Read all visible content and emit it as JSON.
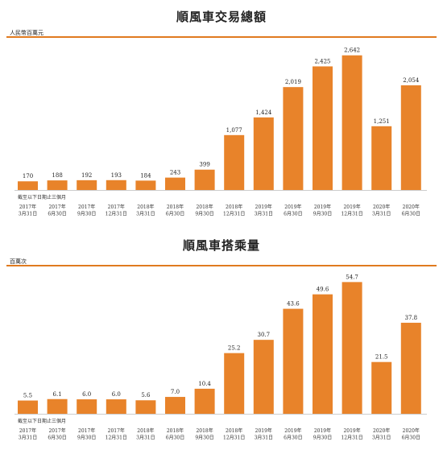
{
  "chart_data": [
    {
      "type": "bar",
      "title": "順風車交易總額",
      "unit_label": "人民幣百萬元",
      "period_note": "截至以下日期止三個月",
      "categories": [
        [
          "2017年",
          "3月31日"
        ],
        [
          "2017年",
          "6月30日"
        ],
        [
          "2017年",
          "9月30日"
        ],
        [
          "2017年",
          "12月31日"
        ],
        [
          "2018年",
          "3月31日"
        ],
        [
          "2018年",
          "6月30日"
        ],
        [
          "2018年",
          "9月30日"
        ],
        [
          "2018年",
          "12月31日"
        ],
        [
          "2019年",
          "3月31日"
        ],
        [
          "2019年",
          "6月30日"
        ],
        [
          "2019年",
          "9月30日"
        ],
        [
          "2019年",
          "12月31日"
        ],
        [
          "2020年",
          "3月31日"
        ],
        [
          "2020年",
          "6月30日"
        ]
      ],
      "values": [
        170,
        188,
        192,
        193,
        184,
        243,
        399,
        1077,
        1424,
        2019,
        2425,
        2642,
        1251,
        2054
      ],
      "value_labels": [
        "170",
        "188",
        "192",
        "193",
        "184",
        "243",
        "399",
        "1,077",
        "1,424",
        "2,019",
        "2,425",
        "2,642",
        "1,251",
        "2,054"
      ],
      "ylim": [
        0,
        2780
      ],
      "grid": false,
      "bar_color": "#e8832a"
    },
    {
      "type": "bar",
      "title": "順風車搭乘量",
      "unit_label": "百萬次",
      "period_note": "截至以下日期止三個月",
      "categories": [
        [
          "2017年",
          "3月31日"
        ],
        [
          "2017年",
          "6月30日"
        ],
        [
          "2017年",
          "9月30日"
        ],
        [
          "2017年",
          "12月31日"
        ],
        [
          "2018年",
          "3月31日"
        ],
        [
          "2018年",
          "6月30日"
        ],
        [
          "2018年",
          "9月30日"
        ],
        [
          "2018年",
          "12月31日"
        ],
        [
          "2019年",
          "3月31日"
        ],
        [
          "2019年",
          "6月30日"
        ],
        [
          "2019年",
          "9月30日"
        ],
        [
          "2019年",
          "12月31日"
        ],
        [
          "2020年",
          "3月31日"
        ],
        [
          "2020年",
          "6月30日"
        ]
      ],
      "values": [
        5.5,
        6.1,
        6.0,
        6.0,
        5.6,
        7.0,
        10.4,
        25.2,
        30.7,
        43.6,
        49.6,
        54.7,
        21.5,
        37.8
      ],
      "value_labels": [
        "5.5",
        "6.1",
        "6.0",
        "6.0",
        "5.6",
        "7.0",
        "10.4",
        "25.2",
        "30.7",
        "43.6",
        "49.6",
        "54.7",
        "21.5",
        "37.8"
      ],
      "ylim": [
        0,
        57.5
      ],
      "grid": false,
      "bar_color": "#e8832a"
    }
  ]
}
